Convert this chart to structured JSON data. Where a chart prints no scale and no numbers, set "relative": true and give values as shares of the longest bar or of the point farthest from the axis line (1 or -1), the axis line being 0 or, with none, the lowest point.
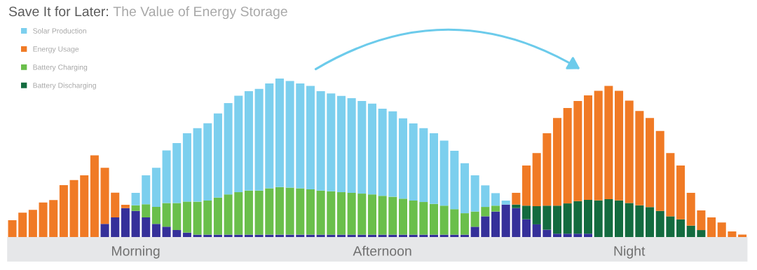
{
  "chart_data": {
    "type": "bar",
    "title": "Save It for Later:",
    "subtitle": "The Value of Energy Storage",
    "relative": true,
    "stacked": true,
    "legend": "top left",
    "categories": [
      null,
      null,
      null,
      null,
      null,
      null,
      null,
      null,
      null,
      null,
      null,
      null,
      "Morning",
      null,
      null,
      null,
      null,
      null,
      null,
      null,
      null,
      null,
      null,
      null,
      null,
      null,
      null,
      null,
      null,
      null,
      null,
      null,
      null,
      null,
      null,
      null,
      "Afternoon",
      null,
      null,
      null,
      null,
      null,
      null,
      null,
      null,
      null,
      null,
      null,
      null,
      null,
      null,
      null,
      null,
      null,
      null,
      null,
      null,
      null,
      null,
      null,
      "Night",
      null,
      null,
      null,
      null,
      null,
      null,
      null,
      null,
      null,
      null,
      null
    ],
    "series": [
      {
        "color": "#35309a",
        "values": [
          null,
          null,
          null,
          null,
          null,
          null,
          null,
          null,
          null,
          0.083,
          0.124,
          0.183,
          0.165,
          0.124,
          0.083,
          0.065,
          0.044,
          0.028,
          0.015,
          0.015,
          0.015,
          0.015,
          0.015,
          0.015,
          0.015,
          0.015,
          0.015,
          0.015,
          0.015,
          0.015,
          0.015,
          0.015,
          0.015,
          0.015,
          0.015,
          0.015,
          0.015,
          0.015,
          0.015,
          0.015,
          0.015,
          0.015,
          0.015,
          0.015,
          0.015,
          0.065,
          0.131,
          0.161,
          0.205,
          0.183,
          0.112,
          0.08,
          0.046,
          0.021,
          0.021,
          0.021,
          0.021,
          null,
          null,
          null,
          null,
          null,
          null,
          null,
          null,
          null,
          null,
          null,
          null,
          null,
          null,
          null
        ]
      },
      {
        "name": "Battery Discharging",
        "color": "#136b3f",
        "values": [
          null,
          null,
          null,
          null,
          null,
          null,
          null,
          null,
          null,
          null,
          null,
          null,
          null,
          null,
          null,
          null,
          null,
          null,
          null,
          null,
          null,
          null,
          null,
          null,
          null,
          null,
          null,
          null,
          null,
          null,
          null,
          null,
          null,
          null,
          null,
          null,
          null,
          null,
          null,
          null,
          null,
          null,
          null,
          null,
          null,
          null,
          null,
          null,
          null,
          0.022,
          0.086,
          0.115,
          0.152,
          0.177,
          0.191,
          0.206,
          0.214,
          0.231,
          0.239,
          0.231,
          0.215,
          0.2,
          0.189,
          0.165,
          0.131,
          0.112,
          0.072,
          0.044,
          null,
          null,
          null,
          null
        ]
      },
      {
        "name": "Battery Charging",
        "color": "#6abf4b",
        "values": [
          null,
          null,
          null,
          null,
          null,
          null,
          null,
          null,
          null,
          null,
          null,
          null,
          0.035,
          0.083,
          0.107,
          0.15,
          0.171,
          0.196,
          0.208,
          0.215,
          0.234,
          0.254,
          0.268,
          0.278,
          0.278,
          0.293,
          0.3,
          0.297,
          0.293,
          0.286,
          0.278,
          0.274,
          0.268,
          0.264,
          0.259,
          0.254,
          0.245,
          0.239,
          0.227,
          0.215,
          0.206,
          0.194,
          0.183,
          0.161,
          0.135,
          0.096,
          0.059,
          0.037,
          null,
          null,
          null,
          null,
          null,
          null,
          null,
          null,
          null,
          null,
          null,
          null,
          null,
          null,
          null,
          null,
          null,
          null,
          null,
          null,
          null,
          null,
          null,
          null
        ]
      },
      {
        "name": "Energy Usage",
        "color": "#f07a25",
        "values": [
          0.106,
          0.154,
          0.171,
          0.218,
          0.233,
          0.327,
          0.36,
          0.389,
          0.515,
          0.354,
          0.156,
          0.021,
          null,
          null,
          null,
          null,
          null,
          null,
          null,
          null,
          null,
          null,
          null,
          null,
          null,
          null,
          null,
          null,
          null,
          null,
          null,
          null,
          null,
          null,
          null,
          null,
          null,
          null,
          null,
          null,
          null,
          null,
          null,
          null,
          null,
          null,
          null,
          null,
          null,
          0.074,
          0.253,
          0.335,
          0.457,
          0.553,
          0.602,
          0.631,
          0.659,
          0.692,
          0.714,
          0.692,
          0.646,
          0.595,
          0.562,
          0.504,
          0.399,
          0.339,
          0.207,
          0.124,
          0.124,
          0.092,
          0.035,
          0.016
        ]
      },
      {
        "name": "Solar Production",
        "color": "#7ccfee",
        "values": [
          null,
          null,
          null,
          null,
          null,
          null,
          null,
          null,
          null,
          null,
          null,
          null,
          0.079,
          0.182,
          0.247,
          0.332,
          0.378,
          0.431,
          0.464,
          0.488,
          0.531,
          0.576,
          0.609,
          0.627,
          0.642,
          0.661,
          0.685,
          0.672,
          0.661,
          0.652,
          0.627,
          0.617,
          0.608,
          0.597,
          0.584,
          0.573,
          0.55,
          0.539,
          0.507,
          0.487,
          0.466,
          0.446,
          0.41,
          0.368,
          0.316,
          0.228,
          0.136,
          0.079,
          0.025,
          null,
          null,
          null,
          null,
          null,
          null,
          null,
          null,
          null,
          null,
          null,
          null,
          null,
          null,
          null,
          null,
          null,
          null,
          null,
          null,
          null,
          null,
          null
        ]
      }
    ]
  }
}
